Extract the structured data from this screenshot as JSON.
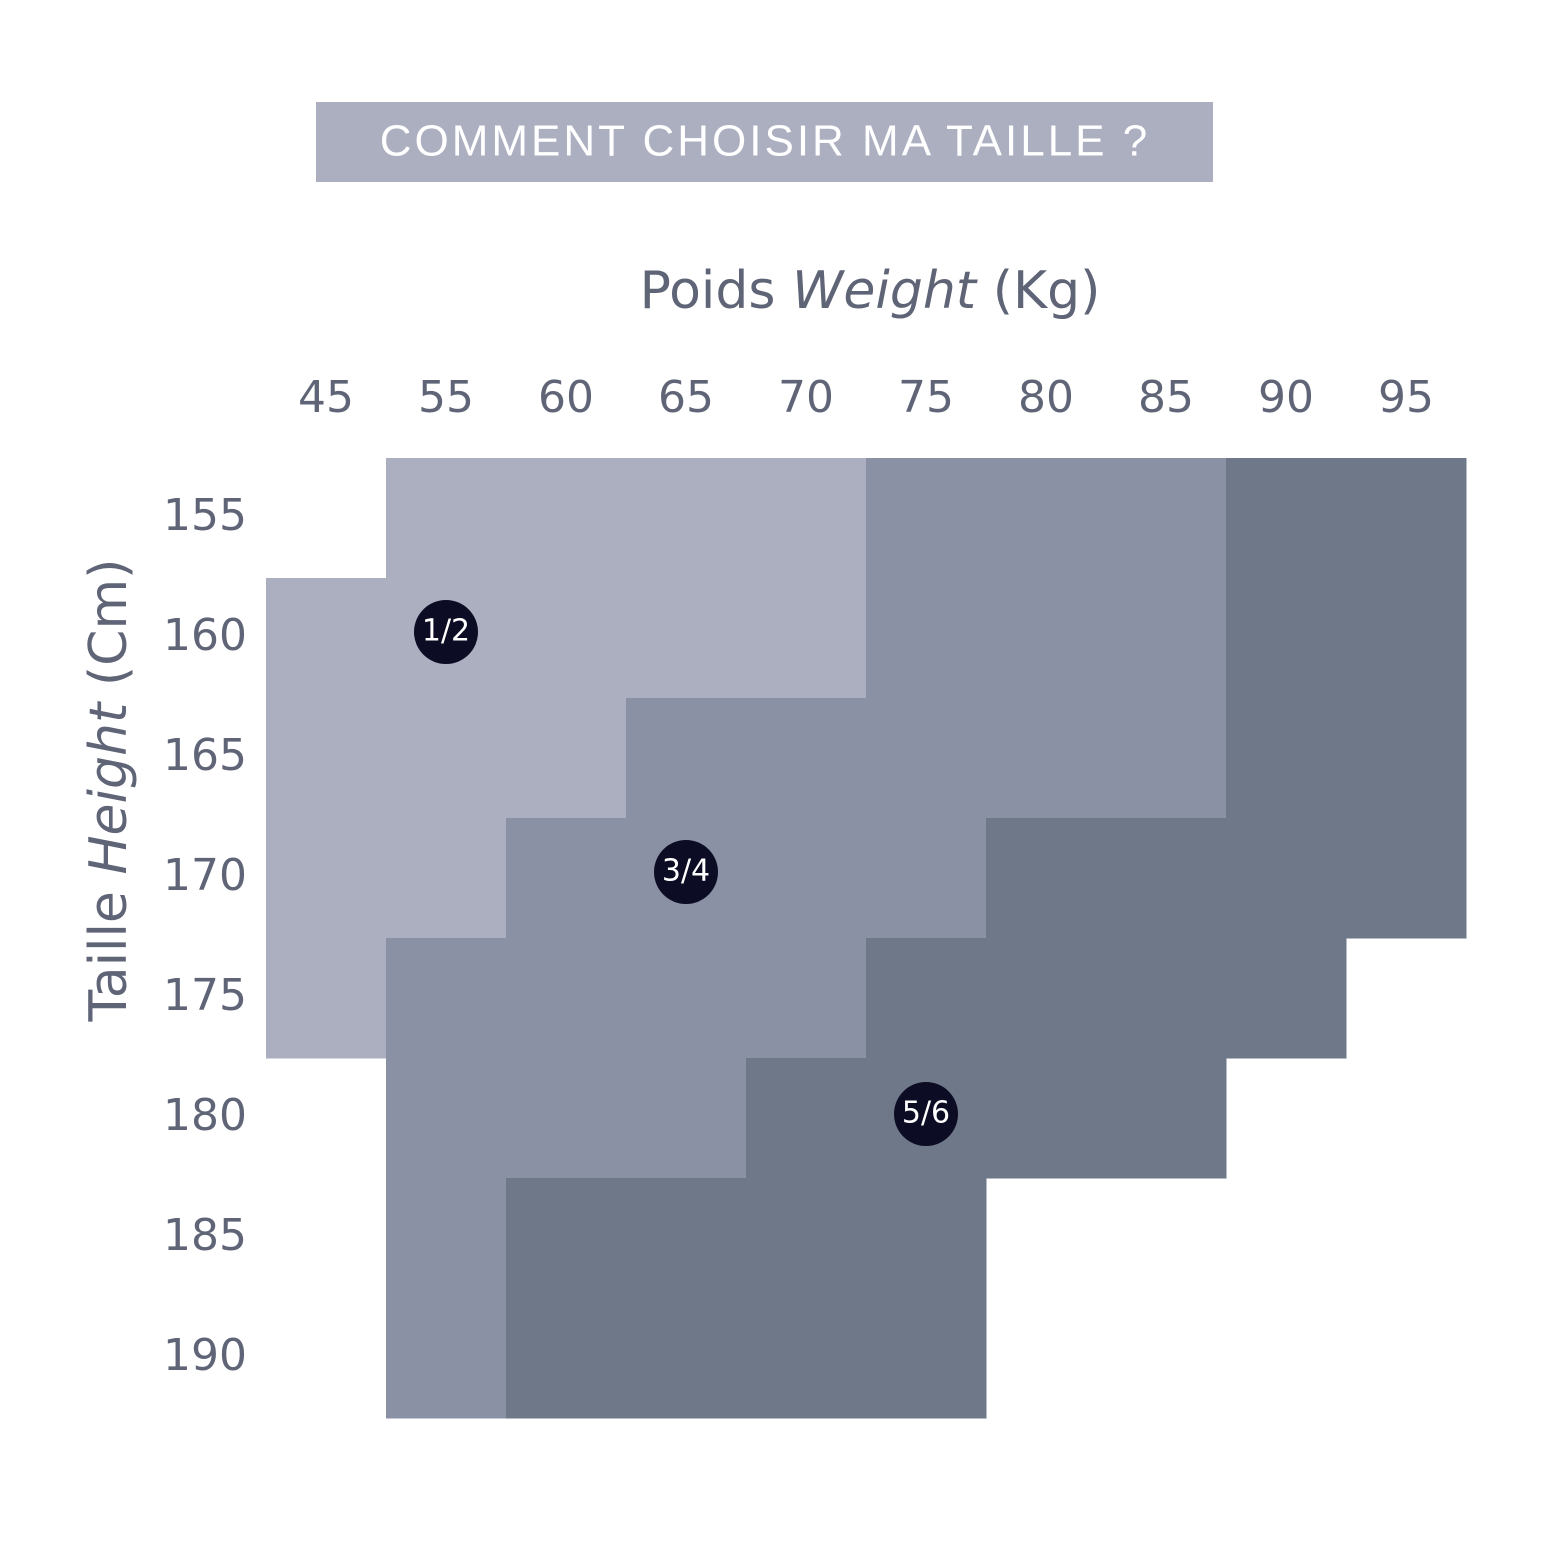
{
  "header": {
    "title": "COMMENT CHOISIR MA TAILLE ?"
  },
  "x_axis": {
    "label": [
      "Poids",
      "Weight",
      "(Kg)"
    ],
    "ticks": [
      "45",
      "55",
      "60",
      "65",
      "70",
      "75",
      "80",
      "85",
      "90",
      "95"
    ]
  },
  "y_axis": {
    "label": [
      "Taille",
      "Height",
      "(Cm)"
    ],
    "ticks": [
      "155",
      "160",
      "165",
      "170",
      "175",
      "180",
      "185",
      "190"
    ]
  },
  "sizes": [
    {
      "label": "1/2",
      "color": "#abafc0"
    },
    {
      "label": "3/4",
      "color": "#8b91a5"
    },
    {
      "label": "5/6",
      "color": "#6e7889"
    }
  ],
  "grid": [
    [
      null,
      0,
      0,
      0,
      0,
      1,
      1,
      1,
      2,
      2
    ],
    [
      0,
      0,
      0,
      0,
      0,
      1,
      1,
      1,
      2,
      2
    ],
    [
      0,
      0,
      0,
      1,
      1,
      1,
      1,
      1,
      2,
      2
    ],
    [
      0,
      0,
      1,
      1,
      1,
      1,
      2,
      2,
      2,
      2
    ],
    [
      0,
      1,
      1,
      1,
      1,
      2,
      2,
      2,
      2,
      null
    ],
    [
      null,
      1,
      1,
      1,
      2,
      2,
      2,
      2,
      null,
      null
    ],
    [
      null,
      1,
      2,
      2,
      2,
      2,
      null,
      null,
      null,
      null
    ],
    [
      null,
      1,
      2,
      2,
      2,
      2,
      null,
      null,
      null,
      null
    ]
  ]
}
